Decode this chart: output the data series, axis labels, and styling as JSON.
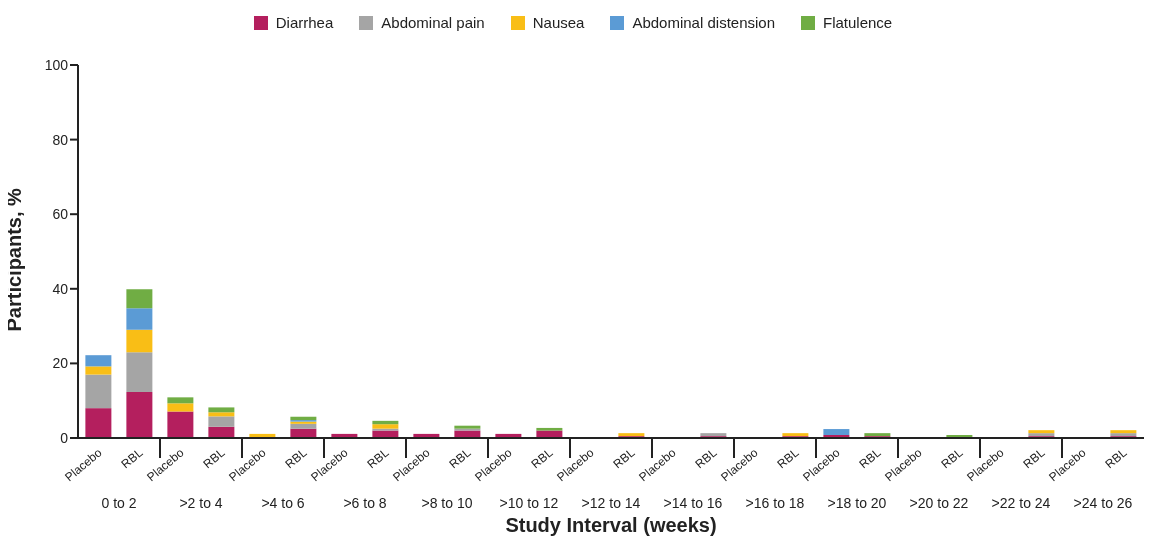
{
  "chart_data": {
    "type": "bar",
    "stacked": true,
    "xlabel": "Study Interval (weeks)",
    "ylabel": "Participants, %",
    "categories": [
      "Placebo",
      "RBL",
      "Placebo",
      "RBL",
      "Placebo",
      "RBL",
      "Placebo",
      "RBL",
      "Placebo",
      "RBL",
      "Placebo",
      "RBL",
      "Placebo",
      "RBL",
      "Placebo",
      "RBL",
      "Placebo",
      "RBL",
      "Placebo",
      "RBL",
      "Placebo",
      "RBL",
      "Placebo",
      "RBL",
      "Placebo",
      "RBL"
    ],
    "annotations": [
      "0 to 2",
      ">2 to 4",
      ">4 to 6",
      ">6 to 8",
      ">8 to 10",
      ">10 to 12",
      ">12 to 14",
      ">14 to 16",
      ">16 to 18",
      ">18 to 20",
      ">20 to 22",
      ">22 to 24",
      ">24 to 26"
    ],
    "series": [
      {
        "name": "Diarrhea",
        "color": "#b41f5e",
        "values": [
          8,
          12.3,
          7.1,
          3,
          0,
          2.5,
          1.1,
          2,
          1.1,
          2,
          1.1,
          2,
          0,
          0.5,
          0,
          0.5,
          0,
          0.5,
          0.8,
          0.5,
          0,
          0,
          0,
          0.5,
          0,
          0.5
        ]
      },
      {
        "name": "Abdominal pain",
        "color": "#a5a5a5",
        "values": [
          9,
          10.7,
          0,
          2.8,
          0,
          1.3,
          0,
          0.5,
          0,
          0.5,
          0,
          0,
          0,
          0,
          0,
          0.8,
          0,
          0,
          0,
          0,
          0,
          0,
          0,
          0.8,
          0,
          0.8
        ]
      },
      {
        "name": "Nausea",
        "color": "#f9be16",
        "values": [
          2.2,
          6,
          2.2,
          1.1,
          1.1,
          0.6,
          0,
          1.2,
          0,
          0,
          0,
          0,
          0,
          0.8,
          0,
          0,
          0,
          0.8,
          0,
          0,
          0,
          0,
          0,
          0.8,
          0,
          0.8
        ]
      },
      {
        "name": "Abdominal distension",
        "color": "#5b9bd5",
        "values": [
          3,
          5.8,
          0,
          0,
          0,
          0.4,
          0,
          0,
          0,
          0,
          0,
          0,
          0,
          0,
          0,
          0,
          0,
          0,
          1.6,
          0,
          0,
          0,
          0,
          0,
          0,
          0
        ]
      },
      {
        "name": "Flatulence",
        "color": "#70ad44",
        "values": [
          0,
          5.1,
          1.6,
          1.3,
          0,
          0.9,
          0,
          0.9,
          0,
          0.8,
          0,
          0.7,
          0,
          0,
          0,
          0,
          0,
          0,
          0,
          0.8,
          0,
          0.8,
          0,
          0,
          0,
          0
        ]
      }
    ],
    "ylim": [
      0,
      100
    ],
    "yticks": [
      0,
      20,
      40,
      60,
      80,
      100
    ],
    "grid": false,
    "legend": "top"
  }
}
